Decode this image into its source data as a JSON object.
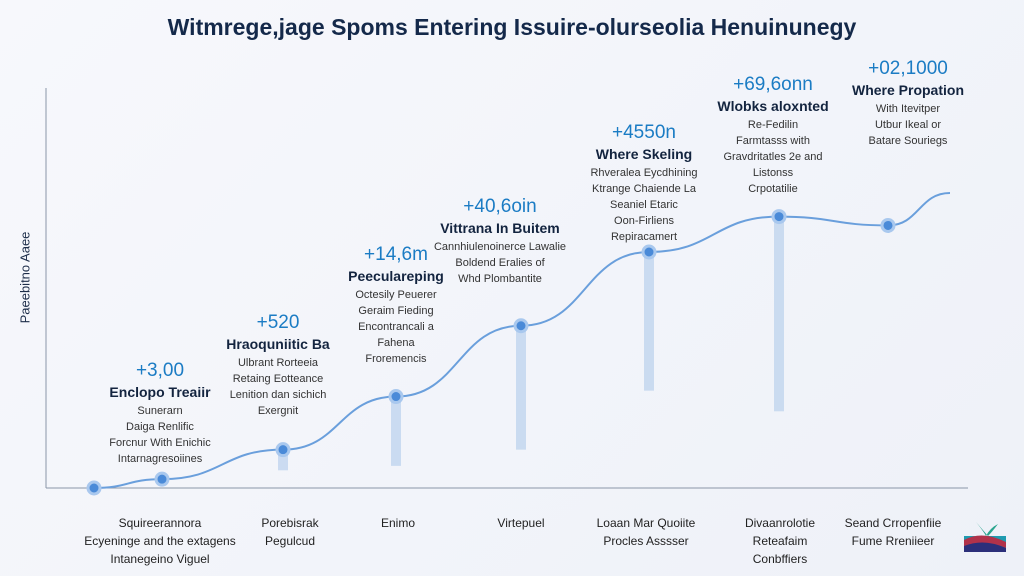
{
  "chart_data": {
    "type": "line",
    "title": "Witmrege,jage Spoms Entering Issuire-olurseolia Henuinunegy",
    "ylabel": "Paeebitno Aaee",
    "xlabel": "",
    "ylim": [
      0,
      110
    ],
    "grid": false,
    "series": [
      {
        "name": "growth",
        "x": [
          0,
          1,
          2,
          3,
          4,
          5,
          6,
          7,
          8
        ],
        "y": [
          0,
          3,
          13,
          31,
          55,
          80,
          92,
          89,
          100
        ]
      }
    ],
    "bars": [
      {
        "x": 2,
        "from": 13,
        "to": 6
      },
      {
        "x": 3,
        "from": 31,
        "to": 7.5
      },
      {
        "x": 4,
        "from": 55,
        "to": 13
      },
      {
        "x": 5,
        "from": 80,
        "to": 33
      },
      {
        "x": 6,
        "from": 92,
        "to": 26
      }
    ],
    "annotations": [
      {
        "value": "+3,00",
        "head": "Enclopo Treaiir",
        "desc": [
          "Sunerarn",
          "Daiga Renlific",
          "Forcnur With Enichic",
          "Intarnagresoiines"
        ]
      },
      {
        "value": "+520",
        "head": "Hraoquniitic Ba",
        "desc": [
          "Ulbrant Rorteeia",
          "Retaing Eottеance",
          "Lenition dan sichich",
          "Exergnit"
        ]
      },
      {
        "value": "+14,6m",
        "head": "Peeculareping",
        "desc": [
          "Octesily Peuerer",
          "Geraim Fieding",
          "Encontrancali a",
          "Fahena",
          "Froremencis"
        ]
      },
      {
        "value": "+40,6oin",
        "head": "Vittrana In Buitem",
        "desc": [
          "Cannhiulenoinerce Lawalie",
          "Boldend Eralies of",
          "Whd Plombantite"
        ]
      },
      {
        "value": "+4550n",
        "head": "Where Skeling",
        "desc": [
          "Rhveralea Eycdhining",
          "Ktrange Chaiende La",
          "Seaniel Etaric",
          "Oon-Firliens",
          "Repiracamert"
        ]
      },
      {
        "value": "+69,6onn",
        "head": "Wlobks aloxnted",
        "desc": [
          "Re-Fedilin",
          "Farmtasss with",
          "Gravdritatles 2e and",
          "Listonss",
          "Crpotatilie"
        ]
      },
      {
        "value": "+02,1000",
        "head": "Where Propation",
        "desc": [
          "With Itevitper",
          "Utbur Ikeal or",
          "Batare Souriegs"
        ]
      }
    ],
    "xticks": [
      [
        "Squireеrannora",
        "Ecyeninge and the extagens",
        "Intanegeino Viguel"
      ],
      [
        "Porebisrak",
        "Pegulcud"
      ],
      [
        "Enimo"
      ],
      [
        "Virtepuel"
      ],
      [
        "Loaan Mar Quoiite",
        "Procles Asssser"
      ],
      [
        "Divaanrolotie",
        "Reteafaim",
        "Conbffiers"
      ],
      [
        "Seand Crropenfiie",
        "Fume Rreniieer"
      ]
    ]
  },
  "colors": {
    "line": "#6a9fdc",
    "point": "#4a8ad8",
    "bar": "#c3d6ee",
    "value": "#1b7cc4",
    "axis": "#8a96a8"
  }
}
